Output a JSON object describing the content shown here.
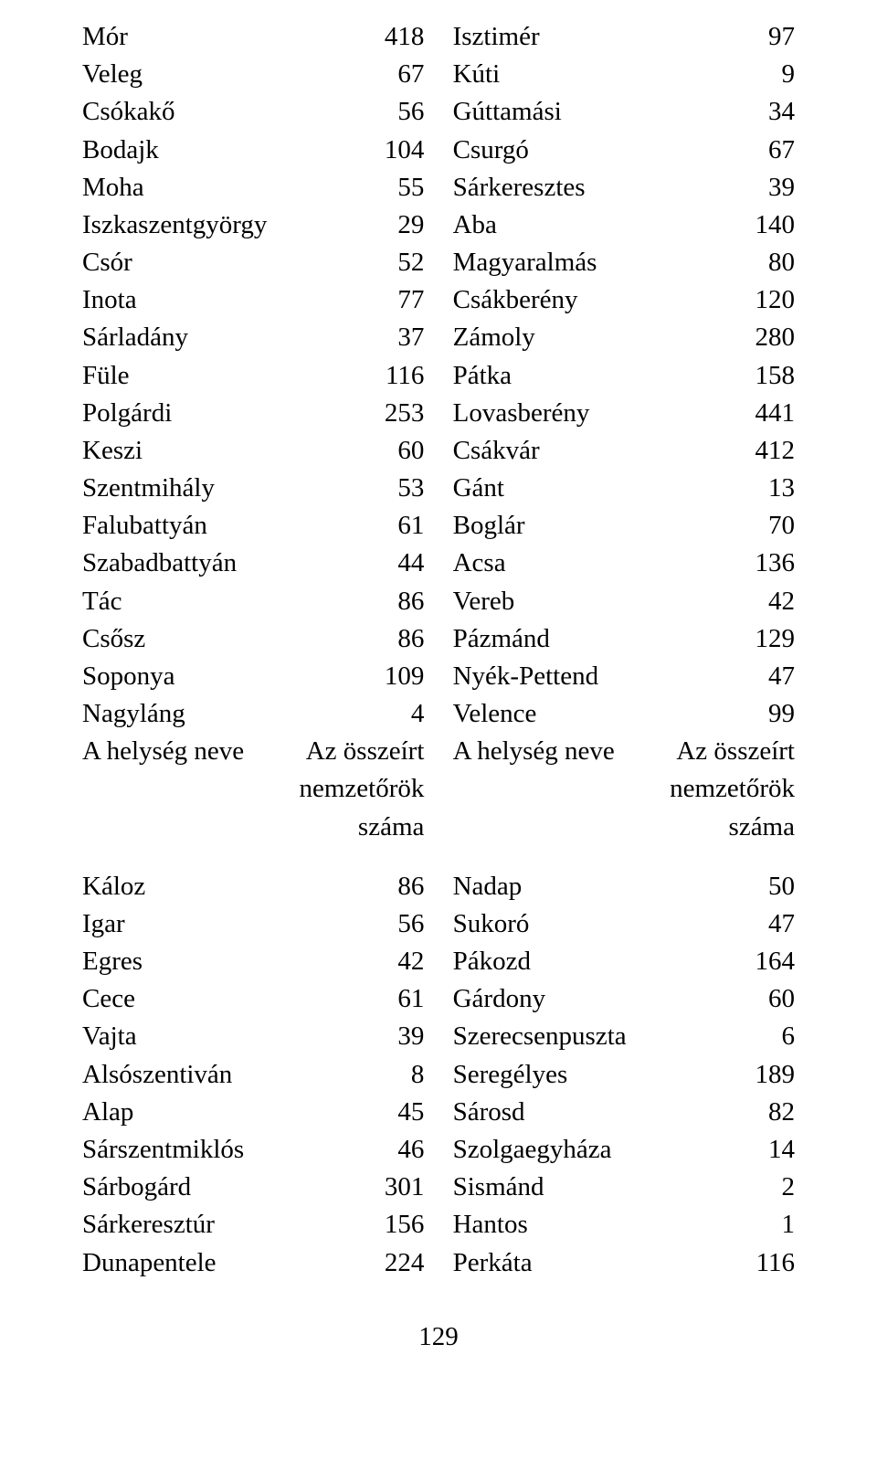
{
  "text_color": "#000000",
  "background_color": "#ffffff",
  "font_family": "Times New Roman",
  "font_size_pt": 14,
  "top_block": {
    "left": [
      {
        "name": "Mór",
        "val": "418"
      },
      {
        "name": "Veleg",
        "val": "67"
      },
      {
        "name": "Csókakő",
        "val": "56"
      },
      {
        "name": "Bodajk",
        "val": "104"
      },
      {
        "name": "Moha",
        "val": "55"
      },
      {
        "name": "Iszkaszentgyörgy",
        "val": "29"
      },
      {
        "name": "Csór",
        "val": "52"
      },
      {
        "name": "Inota",
        "val": "77"
      },
      {
        "name": "Sárladány",
        "val": "37"
      },
      {
        "name": "Füle",
        "val": "116"
      },
      {
        "name": "Polgárdi",
        "val": "253"
      },
      {
        "name": "Keszi",
        "val": "60"
      },
      {
        "name": "Szentmihály",
        "val": "53"
      },
      {
        "name": "Falubattyán",
        "val": "61"
      },
      {
        "name": "Szabadbattyán",
        "val": "44"
      },
      {
        "name": "Tác",
        "val": "86"
      },
      {
        "name": "Csősz",
        "val": "86"
      },
      {
        "name": "Soponya",
        "val": "109"
      },
      {
        "name": "Nagyláng",
        "val": "4"
      }
    ],
    "right": [
      {
        "name": "Isztimér",
        "val": "97"
      },
      {
        "name": "Kúti",
        "val": "9"
      },
      {
        "name": "Gúttamási",
        "val": "34"
      },
      {
        "name": "Csurgó",
        "val": "67"
      },
      {
        "name": "Sárkeresztes",
        "val": "39"
      },
      {
        "name": "Aba",
        "val": "140"
      },
      {
        "name": "Magyaralmás",
        "val": "80"
      },
      {
        "name": "Csákberény",
        "val": "120"
      },
      {
        "name": "Zámoly",
        "val": "280"
      },
      {
        "name": "Pátka",
        "val": "158"
      },
      {
        "name": "Lovasberény",
        "val": "441"
      },
      {
        "name": "Csákvár",
        "val": "412"
      },
      {
        "name": "Gánt",
        "val": "13"
      },
      {
        "name": "Boglár",
        "val": "70"
      },
      {
        "name": "Acsa",
        "val": "136"
      },
      {
        "name": "Vereb",
        "val": "42"
      },
      {
        "name": "Pázmánd",
        "val": "129"
      },
      {
        "name": "Nyék-Pettend",
        "val": "47"
      },
      {
        "name": "Velence",
        "val": "99"
      }
    ]
  },
  "header": {
    "left_name": "A helység neve",
    "right_lines": [
      "Az összeírt",
      "nemzetőrök",
      "száma"
    ]
  },
  "bottom_block": {
    "left": [
      {
        "name": "Káloz",
        "val": "86"
      },
      {
        "name": "Igar",
        "val": "56"
      },
      {
        "name": "Egres",
        "val": "42"
      },
      {
        "name": "Cece",
        "val": "61"
      },
      {
        "name": "Vajta",
        "val": "39"
      },
      {
        "name": "Alsószentiván",
        "val": "8"
      },
      {
        "name": "Alap",
        "val": "45"
      },
      {
        "name": "Sárszentmiklós",
        "val": "46"
      },
      {
        "name": "Sárbogárd",
        "val": "301"
      },
      {
        "name": "Sárkeresztúr",
        "val": "156"
      },
      {
        "name": "Dunapentele",
        "val": "224"
      }
    ],
    "right": [
      {
        "name": "Nadap",
        "val": "50"
      },
      {
        "name": "Sukoró",
        "val": "47"
      },
      {
        "name": "Pákozd",
        "val": "164"
      },
      {
        "name": "Gárdony",
        "val": "60"
      },
      {
        "name": "Szerecsenpuszta",
        "val": "6"
      },
      {
        "name": "Seregélyes",
        "val": "189"
      },
      {
        "name": "Sárosd",
        "val": "82"
      },
      {
        "name": "Szolgaegyháza",
        "val": "14"
      },
      {
        "name": "Sismánd",
        "val": "2"
      },
      {
        "name": "Hantos",
        "val": "1"
      },
      {
        "name": "Perkáta",
        "val": "116"
      }
    ]
  },
  "page_number": "129"
}
